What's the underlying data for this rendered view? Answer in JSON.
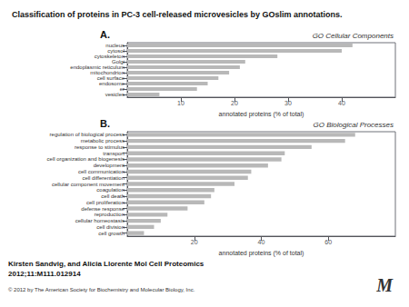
{
  "title": "Classification of proteins in PC-3 cell-released microvesicles by GOslim annotations.",
  "annotations": [
    "Kirsten Sandvig, and Alicia Llorente Mol Cell Proteomics",
    "2012;11:M111.012914",
    "© 2012 by The American Society for Biochemistry and Molecular Biology, Inc.",
    "M"
  ],
  "chart_data": [
    {
      "type": "bar",
      "orientation": "horizontal",
      "title": "GO Cellular Components",
      "annotations": [
        "A."
      ],
      "xlabel": "annotated proteins (% of total)",
      "categories": [
        "vesicles",
        "er",
        "endosome",
        "cell surface",
        "mitochondrion",
        "endoplasmic reticulum",
        "Golgi",
        "cytoskeleton",
        "cytosol",
        "nucleus"
      ],
      "values": [
        6,
        13,
        15,
        17,
        19,
        21,
        22,
        28,
        40,
        42
      ],
      "color": "#b8b8b8",
      "xlim": [
        0,
        50
      ],
      "xticks": [
        10,
        20,
        30,
        40
      ],
      "grid": false
    },
    {
      "type": "bar",
      "orientation": "horizontal",
      "title": "GO Biological Processes",
      "annotations": [
        "B."
      ],
      "xlabel": "annotated proteins (% of total)",
      "categories": [
        "cell growth",
        "cell division",
        "cellular homeostasis",
        "reproduction",
        "defense response",
        "cell proliferation",
        "cell death",
        "coagulation",
        "cellular component movement",
        "cell differentiation",
        "cell communication",
        "development",
        "cell organization and biogenesis",
        "transport",
        "response to stimulus",
        "metabolic process",
        "regulation of biological process"
      ],
      "values": [
        5,
        8,
        10,
        12,
        18,
        23,
        25,
        26,
        32,
        36,
        37,
        42,
        46,
        47,
        55,
        65,
        68
      ],
      "color": "#b8b8b8",
      "xlim": [
        0,
        80
      ],
      "xticks": [
        20,
        40,
        60
      ],
      "grid": false
    }
  ]
}
